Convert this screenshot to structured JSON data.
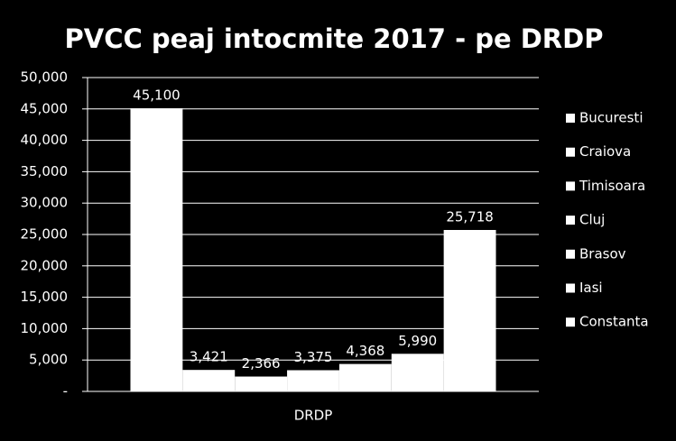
{
  "chart_data": {
    "type": "bar",
    "title": "PVCC peaj intocmite 2017 - pe DRDP",
    "categories": [
      "DRDP"
    ],
    "series": [
      {
        "name": "Bucuresti",
        "color": "#ffffff",
        "values": [
          45100
        ],
        "value_labels": [
          "45,100"
        ]
      },
      {
        "name": "Craiova",
        "color": "#ffffff",
        "values": [
          3421
        ],
        "value_labels": [
          "3,421"
        ]
      },
      {
        "name": "Timisoara",
        "color": "#ffffff",
        "values": [
          2366
        ],
        "value_labels": [
          "2,366"
        ]
      },
      {
        "name": "Cluj",
        "color": "#ffffff",
        "values": [
          3375
        ],
        "value_labels": [
          "3,375"
        ]
      },
      {
        "name": "Brasov",
        "color": "#ffffff",
        "values": [
          4368
        ],
        "value_labels": [
          "4,368"
        ]
      },
      {
        "name": "Iasi",
        "color": "#ffffff",
        "values": [
          5990
        ],
        "value_labels": [
          "5,990"
        ]
      },
      {
        "name": "Constanta",
        "color": "#ffffff",
        "values": [
          25718
        ],
        "value_labels": [
          "25,718"
        ]
      }
    ],
    "ylim": [
      0,
      50000
    ],
    "yticks": [
      {
        "value": 0,
        "label": "-"
      },
      {
        "value": 5000,
        "label": "5,000"
      },
      {
        "value": 10000,
        "label": "10,000"
      },
      {
        "value": 15000,
        "label": "15,000"
      },
      {
        "value": 20000,
        "label": "20,000"
      },
      {
        "value": 25000,
        "label": "25,000"
      },
      {
        "value": 30000,
        "label": "30,000"
      },
      {
        "value": 35000,
        "label": "35,000"
      },
      {
        "value": 40000,
        "label": "40,000"
      },
      {
        "value": 45000,
        "label": "45,000"
      },
      {
        "value": 50000,
        "label": "50,000"
      }
    ],
    "grid": true,
    "legend": "right"
  }
}
